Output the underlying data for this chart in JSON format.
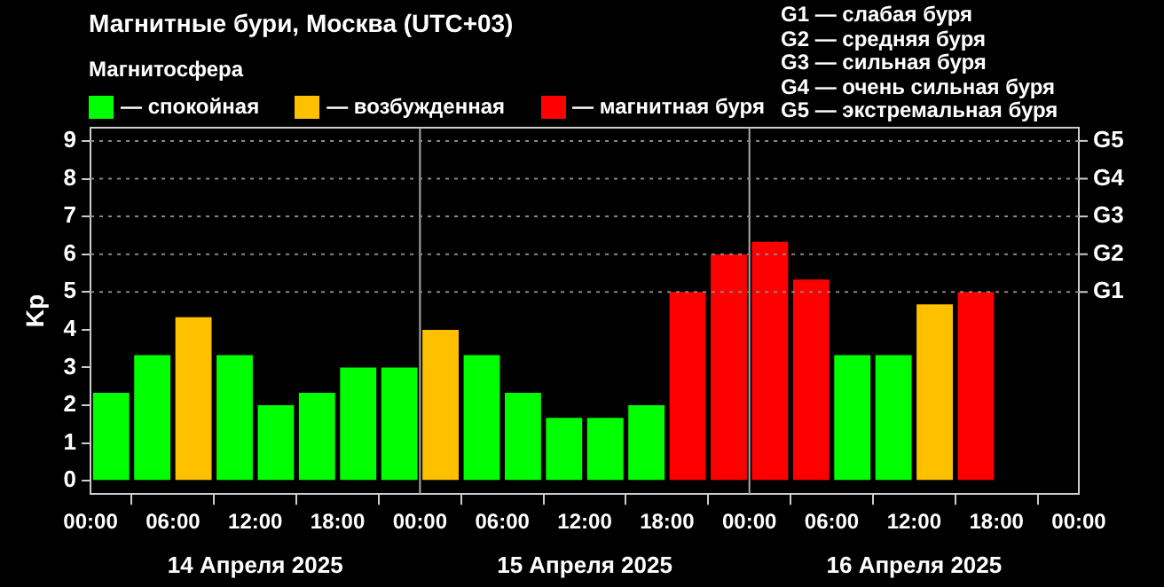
{
  "chart_data": {
    "type": "bar",
    "title": "Магнитные бури, Москва (UTC+03)",
    "legend_title": "Магнитосфера",
    "legend": "top left",
    "ylabel": "Kp",
    "x": [
      "2025-04-14T01:30",
      "2025-04-14T04:30",
      "2025-04-14T07:30",
      "2025-04-14T10:30",
      "2025-04-14T13:30",
      "2025-04-14T16:30",
      "2025-04-14T19:30",
      "2025-04-14T22:30",
      "2025-04-15T01:30",
      "2025-04-15T04:30",
      "2025-04-15T07:30",
      "2025-04-15T10:30",
      "2025-04-15T13:30",
      "2025-04-15T16:30",
      "2025-04-15T19:30",
      "2025-04-15T22:30",
      "2025-04-16T01:30",
      "2025-04-16T04:30",
      "2025-04-16T07:30",
      "2025-04-16T10:30",
      "2025-04-16T13:30",
      "2025-04-16T16:30"
    ],
    "series": [
      {
        "name": "— спокойная",
        "color": "#00ff00",
        "values": [
          2.33,
          3.33,
          null,
          3.33,
          2,
          2.33,
          3,
          3,
          null,
          3.33,
          2.33,
          1.67,
          1.67,
          2,
          null,
          null,
          null,
          null,
          3.33,
          3.33,
          null,
          null
        ]
      },
      {
        "name": "— возбужденная",
        "color": "#ffc000",
        "values": [
          null,
          null,
          4.33,
          null,
          null,
          null,
          null,
          null,
          4,
          null,
          null,
          null,
          null,
          null,
          null,
          null,
          null,
          null,
          null,
          null,
          4.67,
          null
        ]
      },
      {
        "name": "— магнитная буря",
        "color": "#ff0000",
        "values": [
          null,
          null,
          null,
          null,
          null,
          null,
          null,
          null,
          null,
          null,
          null,
          null,
          null,
          null,
          5,
          6,
          6.33,
          5.33,
          null,
          null,
          null,
          5
        ]
      }
    ],
    "xlim": [
      "2025-04-14T00:00",
      "2025-04-17T00:00"
    ],
    "xticks": [
      {
        "value": "2025-04-14T00:00",
        "label": "00:00"
      },
      {
        "value": "2025-04-14T06:00",
        "label": "06:00"
      },
      {
        "value": "2025-04-14T12:00",
        "label": "12:00"
      },
      {
        "value": "2025-04-14T18:00",
        "label": "18:00"
      },
      {
        "value": "2025-04-15T00:00",
        "label": "00:00"
      },
      {
        "value": "2025-04-15T06:00",
        "label": "06:00"
      },
      {
        "value": "2025-04-15T12:00",
        "label": "12:00"
      },
      {
        "value": "2025-04-15T18:00",
        "label": "18:00"
      },
      {
        "value": "2025-04-16T00:00",
        "label": "00:00"
      },
      {
        "value": "2025-04-16T06:00",
        "label": "06:00"
      },
      {
        "value": "2025-04-16T12:00",
        "label": "12:00"
      },
      {
        "value": "2025-04-16T18:00",
        "label": "18:00"
      },
      {
        "value": "2025-04-17T00:00",
        "label": "00:00"
      }
    ],
    "ylim": [
      -0.35,
      9.35
    ],
    "yticks": [
      0,
      1,
      2,
      3,
      4,
      5,
      6,
      7,
      8,
      9
    ],
    "ref_lines": [
      {
        "axis": "x",
        "value": "2025-04-15T00:00",
        "color": "#aaaaaa",
        "line_style": "solid"
      },
      {
        "axis": "x",
        "value": "2025-04-16T00:00",
        "color": "#aaaaaa",
        "line_style": "solid"
      },
      {
        "axis": "y",
        "value": 5,
        "label": "G1",
        "color": "#888888",
        "line_style": "dotted"
      },
      {
        "axis": "y",
        "value": 6,
        "label": "G2",
        "color": "#888888",
        "line_style": "dotted"
      },
      {
        "axis": "y",
        "value": 7,
        "label": "G3",
        "color": "#888888",
        "line_style": "dotted"
      },
      {
        "axis": "y",
        "value": 8,
        "label": "G4",
        "color": "#888888",
        "line_style": "dotted"
      },
      {
        "axis": "y",
        "value": 9,
        "label": "G5",
        "color": "#888888",
        "line_style": "dotted"
      }
    ],
    "annotations": [
      "G1 — слабая буря",
      "G2 — средняя буря",
      "G3 — сильная буря",
      "G4 — очень сильная буря",
      "G5 — экстремальная буря",
      "14 Апреля 2025",
      "15 Апреля 2025",
      "16 Апреля 2025"
    ]
  }
}
